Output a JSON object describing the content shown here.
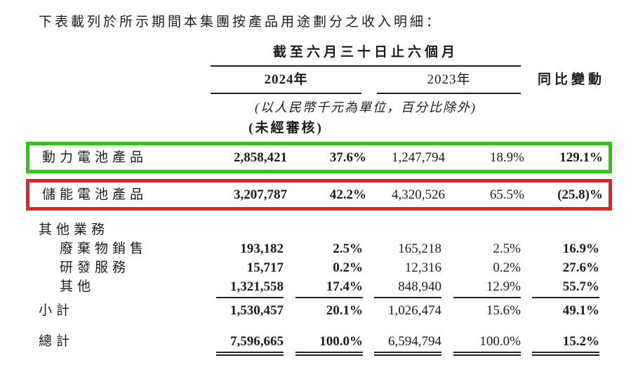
{
  "page": {
    "title": "下表載列於所示期間本集團按產品用途劃分之收入明細："
  },
  "table": {
    "period_header": "截至六月三十日止六個月",
    "col_2024": "2024年",
    "col_2023": "2023年",
    "col_yoy": "同比變動",
    "unit_note": "(以人民幣千元為單位，百分比除外)",
    "audit_note": "(未經審核)",
    "rows": [
      {
        "label": "動力電池產品",
        "v2024_amount": "2,858,421",
        "v2024_pct": "37.6%",
        "v2023_amount": "1,247,794",
        "v2023_pct": "18.9%",
        "yoy": "129.1%"
      },
      {
        "label": "儲能電池產品",
        "v2024_amount": "3,207,787",
        "v2024_pct": "42.2%",
        "v2023_amount": "4,320,526",
        "v2023_pct": "65.5%",
        "yoy": "(25.8)%"
      },
      {
        "label": "其他業務"
      },
      {
        "label": "廢棄物銷售",
        "v2024_amount": "193,182",
        "v2024_pct": "2.5%",
        "v2023_amount": "165,218",
        "v2023_pct": "2.5%",
        "yoy": "16.9%"
      },
      {
        "label": "研發服務",
        "v2024_amount": "15,717",
        "v2024_pct": "0.2%",
        "v2023_amount": "12,316",
        "v2023_pct": "0.2%",
        "yoy": "27.6%"
      },
      {
        "label": "其他",
        "v2024_amount": "1,321,558",
        "v2024_pct": "17.4%",
        "v2023_amount": "848,940",
        "v2023_pct": "12.9%",
        "yoy": "55.7%"
      },
      {
        "label": "小計",
        "v2024_amount": "1,530,457",
        "v2024_pct": "20.1%",
        "v2023_amount": "1,026,474",
        "v2023_pct": "15.6%",
        "yoy": "49.1%"
      },
      {
        "label": "總計",
        "v2024_amount": "7,596,665",
        "v2024_pct": "100.0%",
        "v2023_amount": "6,594,794",
        "v2023_pct": "100.0%",
        "yoy": "15.2%"
      }
    ]
  },
  "highlights": {
    "power_battery_box": "#2ec414",
    "energy_storage_box": "#e02424"
  }
}
